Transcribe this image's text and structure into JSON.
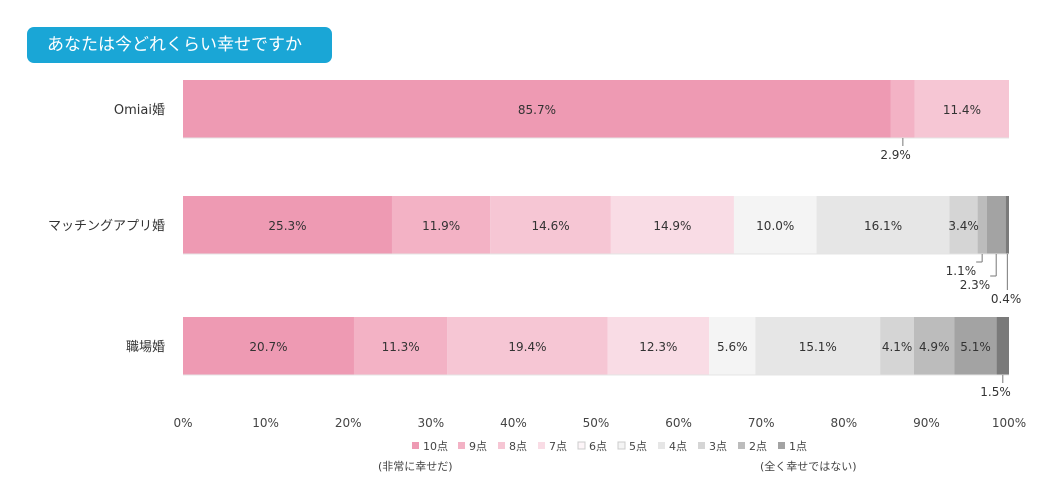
{
  "chart_data": {
    "type": "bar",
    "orientation": "horizontal",
    "stacked": true,
    "title": "あなたは今どれくらい幸せですか",
    "categories": [
      "Omiai婚",
      "マッチングアプリ婚",
      "職場婚"
    ],
    "series": [
      {
        "name": "10点",
        "color": "#ee9ab3",
        "values": [
          85.7,
          25.3,
          20.7
        ]
      },
      {
        "name": "9点",
        "color": "#f3b2c5",
        "values": [
          2.9,
          11.9,
          11.3
        ]
      },
      {
        "name": "8点",
        "color": "#f6c6d4",
        "values": [
          11.4,
          14.6,
          19.4
        ]
      },
      {
        "name": "7点",
        "color": "#f9dce5",
        "values": [
          0,
          14.9,
          12.3
        ]
      },
      {
        "name": "6点",
        "color": "#fdf5f8",
        "values": [
          0,
          0,
          0
        ]
      },
      {
        "name": "5点",
        "color": "#f4f4f4",
        "values": [
          0,
          10.0,
          5.6
        ]
      },
      {
        "name": "4点",
        "color": "#e6e6e6",
        "values": [
          0,
          16.1,
          15.1
        ]
      },
      {
        "name": "3点",
        "color": "#d5d5d5",
        "values": [
          0,
          3.4,
          4.1
        ]
      },
      {
        "name": "2点",
        "color": "#bcbcbc",
        "values": [
          0,
          1.1,
          4.9
        ]
      },
      {
        "name": "1点",
        "color": "#a3a3a3",
        "values": [
          0,
          2.3,
          5.1
        ]
      },
      {
        "name": "",
        "color": "#7a7a7a",
        "values": [
          0,
          0.4,
          1.5
        ]
      }
    ],
    "data_labels": [
      [
        "85.7%",
        "2.9%",
        "11.4%"
      ],
      [
        "25.3%",
        "11.9%",
        "14.6%",
        "14.9%",
        "10.0%",
        "16.1%",
        "3.4%",
        "1.1%",
        "2.3%",
        "0.4%"
      ],
      [
        "20.7%",
        "11.3%",
        "19.4%",
        "12.3%",
        "5.6%",
        "15.1%",
        "4.1%",
        "4.9%",
        "5.1%",
        "1.5%"
      ]
    ],
    "xlim": [
      0,
      100
    ],
    "x_ticks": [
      "0%",
      "10%",
      "20%",
      "30%",
      "40%",
      "50%",
      "60%",
      "70%",
      "80%",
      "90%",
      "100%"
    ],
    "legend": {
      "position": "bottom",
      "items": [
        "10点",
        "9点",
        "8点",
        "7点",
        "6点",
        "5点",
        "4点",
        "3点",
        "2点",
        "1点"
      ],
      "note_left": "(非常に幸せだ)",
      "note_right": "(全く幸せではない)"
    }
  }
}
